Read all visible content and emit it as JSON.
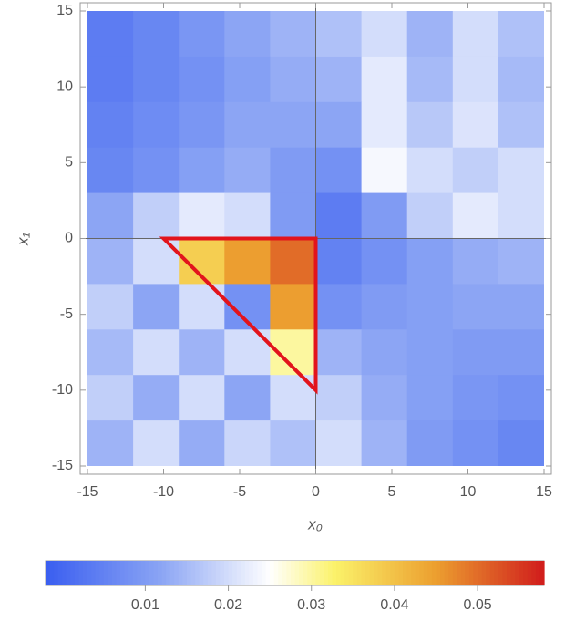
{
  "chart_data": {
    "type": "density",
    "xlabel": "x₀",
    "ylabel": "x₁",
    "x": [
      -13.5,
      -10.5,
      -7.5,
      -4.5,
      -1.5,
      1.5,
      4.5,
      7.5,
      10.5,
      13.5
    ],
    "y": [
      13.5,
      10.5,
      7.5,
      4.5,
      1.5,
      -1.5,
      -4.5,
      -7.5,
      -10.5,
      -13.5
    ],
    "cell": 3,
    "z": [
      [
        0.004,
        0.006,
        0.009,
        0.012,
        0.014,
        0.016,
        0.02,
        0.014,
        0.02,
        0.016
      ],
      [
        0.004,
        0.006,
        0.008,
        0.011,
        0.013,
        0.014,
        0.022,
        0.015,
        0.02,
        0.015
      ],
      [
        0.005,
        0.007,
        0.009,
        0.012,
        0.012,
        0.012,
        0.022,
        0.017,
        0.021,
        0.016
      ],
      [
        0.006,
        0.008,
        0.011,
        0.013,
        0.01,
        0.008,
        0.024,
        0.02,
        0.018,
        0.02
      ],
      [
        0.012,
        0.018,
        0.022,
        0.02,
        0.01,
        0.004,
        0.01,
        0.018,
        0.022,
        0.02
      ],
      [
        0.014,
        0.02,
        0.038,
        0.045,
        0.05,
        0.005,
        0.008,
        0.011,
        0.013,
        0.014
      ],
      [
        0.018,
        0.012,
        0.02,
        0.008,
        0.045,
        0.008,
        0.01,
        0.011,
        0.012,
        0.012
      ],
      [
        0.015,
        0.02,
        0.014,
        0.02,
        0.03,
        0.014,
        0.012,
        0.011,
        0.01,
        0.01
      ],
      [
        0.018,
        0.013,
        0.02,
        0.012,
        0.02,
        0.018,
        0.013,
        0.011,
        0.009,
        0.008
      ],
      [
        0.014,
        0.02,
        0.013,
        0.019,
        0.016,
        0.02,
        0.014,
        0.01,
        0.008,
        0.006
      ]
    ],
    "xlim": [
      -15,
      15
    ],
    "ylim": [
      -15,
      15
    ],
    "xticks": [
      -15,
      -10,
      -5,
      0,
      5,
      10,
      15
    ],
    "yticks": [
      -15,
      -10,
      -5,
      0,
      5,
      10,
      15
    ],
    "zlim": [
      -0.002,
      0.058
    ],
    "zticks": [
      0.01,
      0.02,
      0.03,
      0.04,
      0.05
    ],
    "triangle": {
      "x": [
        -10,
        0,
        0
      ],
      "y": [
        0,
        0,
        -10
      ],
      "color": "#e2141c"
    }
  }
}
